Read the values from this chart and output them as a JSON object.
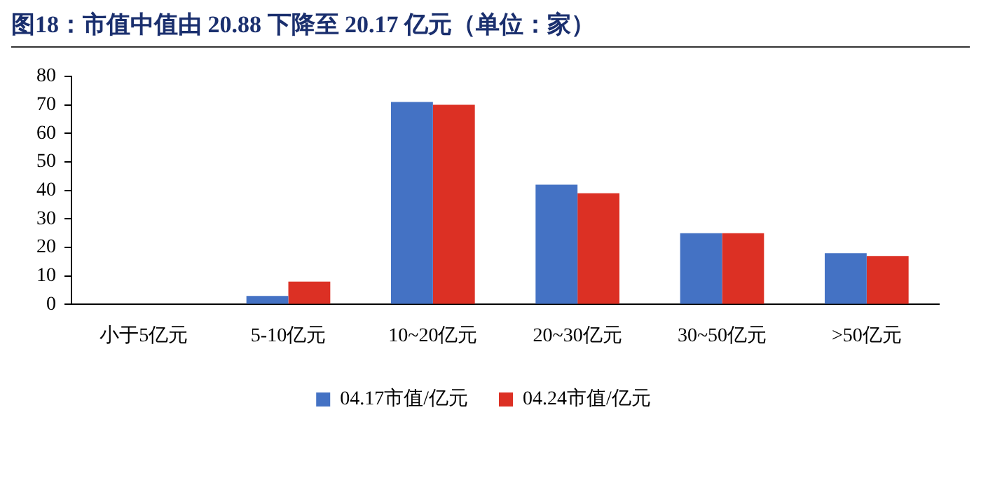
{
  "chart_data": {
    "type": "bar",
    "title": "图18：市值中值由 20.88 下降至 20.17 亿元（单位：家）",
    "categories": [
      "小于5亿元",
      "5-10亿元",
      "10~20亿元",
      "20~30亿元",
      "30~50亿元",
      ">50亿元"
    ],
    "series": [
      {
        "name": "04.17市值/亿元",
        "color": "#4472c4",
        "values": [
          0,
          3,
          71,
          42,
          25,
          18
        ]
      },
      {
        "name": "04.24市值/亿元",
        "color": "#dc3024",
        "values": [
          0,
          8,
          70,
          39,
          25,
          17
        ]
      }
    ],
    "ylim": [
      0,
      80
    ],
    "yticks": [
      0,
      10,
      20,
      30,
      40,
      50,
      60,
      70,
      80
    ],
    "grid": false,
    "legend": "bottom"
  }
}
